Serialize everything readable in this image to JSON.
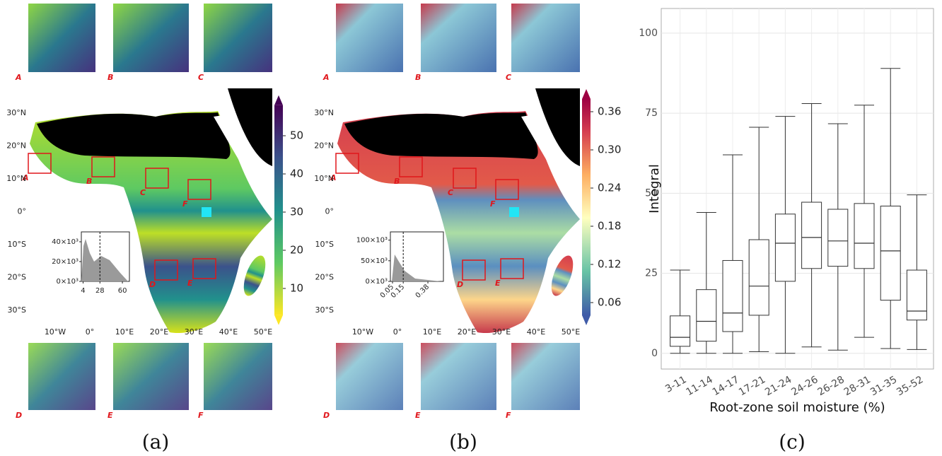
{
  "maps": [
    {
      "panel_label": "(a)",
      "inset_letters_top": [
        "A",
        "B",
        "C"
      ],
      "inset_letters_bottom": [
        "D",
        "E",
        "F"
      ],
      "region_letters": [
        "A",
        "B",
        "C",
        "F",
        "D",
        "E"
      ],
      "lat_labels": [
        "30°N",
        "20°N",
        "10°N",
        "0°",
        "10°S",
        "20°S",
        "30°S"
      ],
      "lon_labels": [
        "10°W",
        "0°",
        "10°E",
        "20°E",
        "30°E",
        "40°E",
        "50°E"
      ],
      "colorbar": {
        "lim": [
          3,
          58
        ],
        "ticks": [
          10,
          20,
          30,
          40,
          50
        ]
      },
      "histogram": {
        "xlim": [
          1.5,
          70
        ],
        "xticks": [
          4,
          28,
          60
        ],
        "ylim": [
          0,
          50000
        ],
        "yticks": [
          {
            "value": 0,
            "label": "0×10³"
          },
          {
            "value": 20000,
            "label": "20×10³"
          },
          {
            "value": 40000,
            "label": "40×10³"
          }
        ]
      }
    },
    {
      "panel_label": "(b)",
      "inset_letters_top": [
        "A",
        "B",
        "C"
      ],
      "inset_letters_bottom": [
        "D",
        "E",
        "F"
      ],
      "region_letters": [
        "A",
        "B",
        "C",
        "F",
        "D",
        "E"
      ],
      "lat_labels": [
        "30°N",
        "20°N",
        "10°N",
        "0°",
        "10°S",
        "20°S",
        "30°S"
      ],
      "lon_labels": [
        "10°W",
        "0°",
        "10°E",
        "20°E",
        "30°E",
        "40°E",
        "50°E"
      ],
      "colorbar": {
        "lim": [
          0.04,
          0.38
        ],
        "ticks": [
          0.06,
          0.12,
          0.18,
          0.24,
          {
            "value": 0.3,
            "label": "0.30"
          },
          0.36
        ]
      },
      "histogram": {
        "xlim": [
          0.03,
          0.525
        ],
        "xticks": [
          0.05,
          0.15,
          0.38
        ],
        "ylim": [
          0,
          120000
        ],
        "yticks": [
          {
            "value": 0,
            "label": "0×10³"
          },
          {
            "value": 50000,
            "label": "50×10³"
          },
          {
            "value": 100000,
            "label": "100×10³"
          }
        ]
      }
    }
  ],
  "chart_data": {
    "type": "box",
    "panel_label": "(c)",
    "xlabel": "Root-zone soil moisture (%)",
    "ylabel": "Integral",
    "categories": [
      "3-11",
      "11-14",
      "14-17",
      "17-21",
      "21-24",
      "24-26",
      "26-28",
      "28-31",
      "31-35",
      "35-52"
    ],
    "whisker_low": [
      0,
      0,
      0,
      0.5,
      0,
      2,
      1,
      5,
      1.5,
      1.2
    ],
    "q1": [
      2.2,
      3.8,
      6.8,
      11.9,
      22.5,
      26.5,
      27.2,
      26.5,
      16.6,
      10.4
    ],
    "median": [
      5,
      10,
      12.6,
      21,
      34.4,
      36.2,
      35.1,
      34.4,
      32,
      13.2
    ],
    "q3": [
      11.7,
      19.9,
      29,
      35.5,
      43.5,
      47.2,
      45,
      46.8,
      46,
      26
    ],
    "whisker_high": [
      26,
      44,
      62,
      70.6,
      74,
      78,
      71.7,
      77.5,
      89,
      49.5
    ],
    "ylim": [
      -4.9,
      107.7
    ],
    "yticks": [
      0,
      25,
      50,
      75,
      100
    ],
    "grid": true
  }
}
